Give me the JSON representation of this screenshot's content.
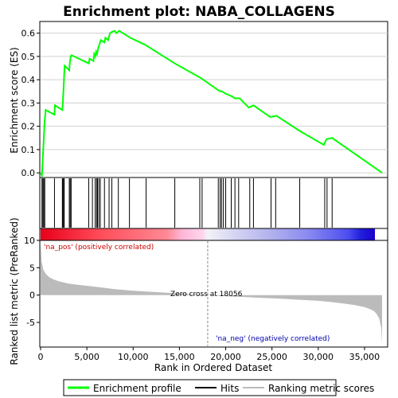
{
  "chart_data": {
    "type": "line",
    "title": "Enrichment plot: NABA_COLLAGENS",
    "top_panel": {
      "ylabel": "Enrichment score (ES)",
      "ylim": [
        -0.02,
        0.65
      ],
      "yticks": [
        "0.0",
        "0.1",
        "0.2",
        "0.3",
        "0.4",
        "0.5",
        "0.6"
      ],
      "ytick_values": [
        0.0,
        0.1,
        0.2,
        0.3,
        0.4,
        0.5,
        0.6
      ],
      "grid": true,
      "series": [
        {
          "name": "Enrichment profile",
          "color": "#00ff00",
          "x": [
            0,
            150,
            250,
            330,
            430,
            550,
            1500,
            1550,
            2350,
            2400,
            2450,
            2500,
            2550,
            2600,
            3100,
            3150,
            3250,
            3350,
            5200,
            5300,
            5700,
            5800,
            5900,
            6000,
            6100,
            6250,
            6350,
            6500,
            6900,
            7000,
            7300,
            7500,
            7700,
            8000,
            8200,
            8500,
            9700,
            11300,
            14500,
            17200,
            17400,
            19200,
            19400,
            19600,
            20000,
            20600,
            21000,
            21500,
            22500,
            23000,
            24800,
            25500,
            28000,
            30600,
            30900,
            31500,
            36900
          ],
          "y": [
            0.0,
            -0.01,
            0.07,
            0.13,
            0.22,
            0.27,
            0.25,
            0.29,
            0.27,
            0.3,
            0.34,
            0.38,
            0.42,
            0.46,
            0.44,
            0.47,
            0.5,
            0.505,
            0.47,
            0.49,
            0.48,
            0.51,
            0.5,
            0.52,
            0.51,
            0.54,
            0.55,
            0.57,
            0.56,
            0.58,
            0.57,
            0.6,
            0.605,
            0.61,
            0.6,
            0.61,
            0.58,
            0.55,
            0.47,
            0.41,
            0.405,
            0.355,
            0.35,
            0.35,
            0.34,
            0.33,
            0.32,
            0.32,
            0.28,
            0.29,
            0.24,
            0.245,
            0.18,
            0.12,
            0.145,
            0.15,
            0.0
          ]
        }
      ]
    },
    "hits": {
      "name": "Hits",
      "x": [
        150,
        250,
        350,
        450,
        1500,
        2350,
        2400,
        2500,
        2550,
        3100,
        3200,
        3300,
        5200,
        5600,
        5900,
        6050,
        6150,
        6300,
        6450,
        6900,
        7400,
        7700,
        8400,
        9600,
        11400,
        14500,
        17200,
        17450,
        19200,
        19400,
        19550,
        19750,
        20000,
        20600,
        21000,
        21400,
        22600,
        23000,
        24900,
        25400,
        28000,
        30700,
        30950,
        31500
      ]
    },
    "bottom_panel": {
      "ylabel": "Ranked list metric (PreRanked)",
      "xlabel": "Rank in Ordered Dataset",
      "ylim": [
        -9.5,
        10
      ],
      "yticks": [
        "10",
        "5",
        "0",
        "-5"
      ],
      "ytick_values": [
        10,
        5,
        0,
        -5
      ],
      "xlim": [
        0,
        37500
      ],
      "xticks": [
        "0",
        "5,000",
        "10,000",
        "15,000",
        "20,000",
        "25,000",
        "30,000",
        "35,000"
      ],
      "xtick_values": [
        0,
        5000,
        10000,
        15000,
        20000,
        25000,
        30000,
        35000
      ],
      "metric_x": [
        0,
        100,
        300,
        600,
        1000,
        1500,
        2000,
        2500,
        3000,
        4000,
        5000,
        6000,
        7000,
        8000,
        9000,
        10000,
        12000,
        14000,
        16000,
        18056,
        20000,
        22000,
        24000,
        26000,
        28000,
        30000,
        31000,
        32000,
        33000,
        34000,
        35000,
        35500,
        36000,
        36300,
        36600,
        36800,
        36900
      ],
      "metric_y": [
        10.0,
        6.2,
        4.6,
        3.8,
        3.2,
        2.8,
        2.5,
        2.3,
        2.1,
        1.9,
        1.7,
        1.5,
        1.3,
        1.1,
        0.95,
        0.8,
        0.6,
        0.4,
        0.2,
        0.0,
        -0.2,
        -0.35,
        -0.5,
        -0.65,
        -0.85,
        -1.05,
        -1.2,
        -1.4,
        -1.6,
        -1.85,
        -2.2,
        -2.5,
        -2.9,
        -3.4,
        -4.3,
        -6.0,
        -8.9
      ],
      "annotations": {
        "pos": "'na_pos' (positively correlated)",
        "neg": "'na_neg' (negatively correlated)",
        "zero": "Zero cross at 18056"
      },
      "zero_cross": 18056
    },
    "legend": [
      {
        "label": "Enrichment profile",
        "color": "#00ff00"
      },
      {
        "label": "Hits",
        "color": "#000000"
      },
      {
        "label": "Ranking metric scores",
        "color": "#bbbbbb"
      }
    ]
  }
}
